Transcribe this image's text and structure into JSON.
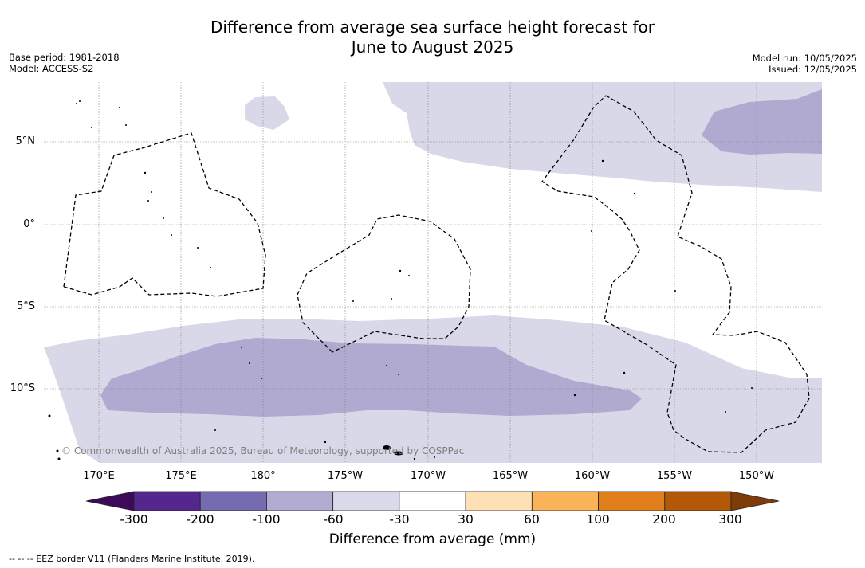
{
  "title": {
    "line1": "Difference from average sea surface height forecast for",
    "line2": "June to August 2025"
  },
  "info_left": {
    "base_period": "Base period: 1981-2018",
    "model": "Model: ACCESS-S2"
  },
  "info_right": {
    "model_run": "Model run: 10/05/2025",
    "issued": "Issued: 12/05/2025"
  },
  "map": {
    "lat_labels": [
      "5°N",
      "0°",
      "5°S",
      "10°S"
    ],
    "lon_labels": [
      "170°E",
      "175°E",
      "180°",
      "175°W",
      "170°W",
      "165°W",
      "160°W",
      "155°W",
      "150°W"
    ],
    "copyright": "© Commonwealth of Australia 2025, Bureau of Meteorology, supported by COSPPac",
    "colors": {
      "light_purple": "#d8d8e8",
      "mid_purple": "#b0a9d0",
      "grid": "#888888"
    }
  },
  "colorbar": {
    "label": "Difference from average (mm)",
    "tick_labels": [
      "-300",
      "-200",
      "-100",
      "-60",
      "-30",
      "30",
      "60",
      "100",
      "200",
      "300"
    ],
    "colors": [
      "#3d0a5a",
      "#54278f",
      "#756bb1",
      "#b1aad1",
      "#d9d9ea",
      "#ffffff",
      "#fde0b4",
      "#f9b45a",
      "#df7e1a",
      "#b35807",
      "#7f3b08"
    ]
  },
  "footnote": "--  --  -- EEZ border V11 (Flanders Marine Institute, 2019)."
}
